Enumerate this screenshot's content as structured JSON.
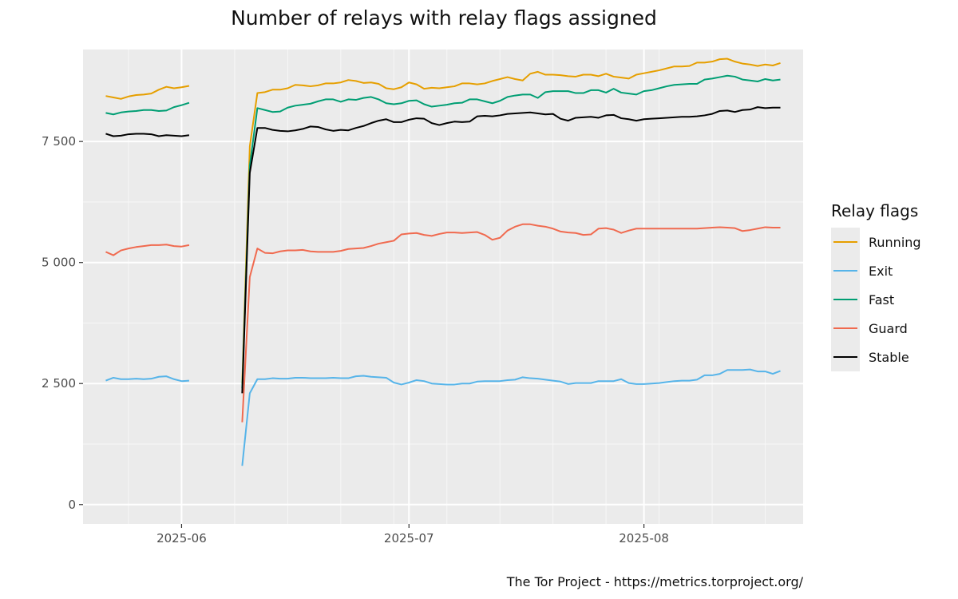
{
  "caption": "The Tor Project - https://metrics.torproject.org/",
  "chart_data": {
    "type": "line",
    "title": "Number of relays with relay flags assigned",
    "xlabel": "",
    "ylabel": "",
    "x_ticks": [
      {
        "date": "2025-06-01",
        "label": "2025-06"
      },
      {
        "date": "2025-07-01",
        "label": "2025-07"
      },
      {
        "date": "2025-08-01",
        "label": "2025-08"
      }
    ],
    "y_ticks": [
      {
        "value": 0,
        "label": "0"
      },
      {
        "value": 2500,
        "label": "2 500"
      },
      {
        "value": 5000,
        "label": "5 000"
      },
      {
        "value": 7500,
        "label": "7 500"
      }
    ],
    "xlim": [
      "2025-05-19",
      "2025-08-22"
    ],
    "ylim": [
      -400,
      9400
    ],
    "grid": true,
    "legend": {
      "title": "Relay flags",
      "position": "right"
    },
    "x_segments": [
      [
        "2025-05-22",
        "2025-05-23",
        "2025-05-24",
        "2025-05-25",
        "2025-05-26",
        "2025-05-27",
        "2025-05-28",
        "2025-05-29",
        "2025-05-30",
        "2025-05-31",
        "2025-06-01",
        "2025-06-02"
      ],
      [
        "2025-06-09",
        "2025-06-10",
        "2025-06-11",
        "2025-06-12",
        "2025-06-13",
        "2025-06-14",
        "2025-06-15",
        "2025-06-16",
        "2025-06-17",
        "2025-06-18",
        "2025-06-19",
        "2025-06-20",
        "2025-06-21",
        "2025-06-22",
        "2025-06-23",
        "2025-06-24",
        "2025-06-25",
        "2025-06-26",
        "2025-06-27",
        "2025-06-28",
        "2025-06-29",
        "2025-06-30",
        "2025-07-01",
        "2025-07-02",
        "2025-07-03",
        "2025-07-04",
        "2025-07-05",
        "2025-07-06",
        "2025-07-07",
        "2025-07-08",
        "2025-07-09",
        "2025-07-10",
        "2025-07-11",
        "2025-07-12",
        "2025-07-13",
        "2025-07-14",
        "2025-07-15",
        "2025-07-16",
        "2025-07-17",
        "2025-07-18",
        "2025-07-19",
        "2025-07-20",
        "2025-07-21",
        "2025-07-22",
        "2025-07-23",
        "2025-07-24",
        "2025-07-25",
        "2025-07-26",
        "2025-07-27",
        "2025-07-28",
        "2025-07-29",
        "2025-07-30",
        "2025-07-31",
        "2025-08-01",
        "2025-08-02",
        "2025-08-03",
        "2025-08-04",
        "2025-08-05",
        "2025-08-06",
        "2025-08-07",
        "2025-08-08",
        "2025-08-09",
        "2025-08-10",
        "2025-08-11",
        "2025-08-12",
        "2025-08-13",
        "2025-08-14",
        "2025-08-15",
        "2025-08-16",
        "2025-08-17",
        "2025-08-18",
        "2025-08-19"
      ]
    ],
    "series": [
      {
        "name": "Running",
        "color": "#E69F00",
        "values": [
          [
            8440,
            8410,
            8380,
            8430,
            8460,
            8470,
            8490,
            8570,
            8630,
            8600,
            8620,
            8650
          ],
          [
            2500,
            7400,
            8500,
            8520,
            8570,
            8570,
            8600,
            8670,
            8660,
            8640,
            8660,
            8700,
            8700,
            8720,
            8770,
            8750,
            8710,
            8720,
            8690,
            8600,
            8580,
            8620,
            8720,
            8680,
            8590,
            8610,
            8600,
            8620,
            8640,
            8700,
            8700,
            8680,
            8700,
            8750,
            8790,
            8830,
            8790,
            8760,
            8900,
            8940,
            8880,
            8880,
            8870,
            8850,
            8840,
            8880,
            8880,
            8850,
            8900,
            8840,
            8820,
            8800,
            8880,
            8910,
            8940,
            8970,
            9010,
            9050,
            9050,
            9060,
            9130,
            9130,
            9150,
            9200,
            9210,
            9150,
            9110,
            9090,
            9060,
            9090,
            9070,
            9120
          ]
        ]
      },
      {
        "name": "Exit",
        "color": "#56B4E9",
        "values": [
          [
            2560,
            2620,
            2590,
            2590,
            2600,
            2590,
            2600,
            2640,
            2650,
            2590,
            2550,
            2560
          ],
          [
            800,
            2300,
            2590,
            2590,
            2610,
            2600,
            2600,
            2620,
            2620,
            2610,
            2610,
            2610,
            2620,
            2610,
            2610,
            2650,
            2660,
            2640,
            2630,
            2620,
            2520,
            2480,
            2520,
            2570,
            2550,
            2500,
            2490,
            2480,
            2480,
            2500,
            2500,
            2540,
            2550,
            2550,
            2550,
            2570,
            2580,
            2630,
            2610,
            2600,
            2580,
            2560,
            2540,
            2490,
            2510,
            2510,
            2510,
            2550,
            2550,
            2550,
            2590,
            2510,
            2490,
            2490,
            2500,
            2510,
            2530,
            2550,
            2560,
            2560,
            2580,
            2670,
            2670,
            2700,
            2780,
            2780,
            2780,
            2790,
            2750,
            2750,
            2700,
            2760
          ]
        ]
      },
      {
        "name": "Fast",
        "color": "#009E73",
        "values": [
          [
            8090,
            8060,
            8100,
            8120,
            8130,
            8150,
            8150,
            8130,
            8140,
            8210,
            8250,
            8300
          ],
          [
            2400,
            7000,
            8190,
            8150,
            8110,
            8120,
            8200,
            8240,
            8260,
            8280,
            8330,
            8370,
            8370,
            8320,
            8370,
            8360,
            8400,
            8420,
            8370,
            8290,
            8270,
            8290,
            8340,
            8350,
            8270,
            8220,
            8240,
            8260,
            8290,
            8300,
            8370,
            8370,
            8330,
            8290,
            8340,
            8420,
            8450,
            8470,
            8470,
            8400,
            8520,
            8540,
            8540,
            8540,
            8500,
            8500,
            8560,
            8560,
            8510,
            8590,
            8510,
            8490,
            8470,
            8540,
            8560,
            8600,
            8640,
            8670,
            8680,
            8690,
            8690,
            8780,
            8800,
            8830,
            8860,
            8840,
            8780,
            8760,
            8740,
            8790,
            8760,
            8780
          ]
        ]
      },
      {
        "name": "Guard",
        "color": "#F06A4F",
        "values": [
          [
            5220,
            5150,
            5250,
            5290,
            5320,
            5340,
            5360,
            5360,
            5370,
            5340,
            5330,
            5360
          ],
          [
            1700,
            4700,
            5290,
            5200,
            5190,
            5230,
            5250,
            5250,
            5260,
            5230,
            5220,
            5220,
            5220,
            5240,
            5280,
            5290,
            5300,
            5340,
            5390,
            5420,
            5450,
            5580,
            5600,
            5610,
            5570,
            5550,
            5590,
            5620,
            5620,
            5610,
            5620,
            5630,
            5570,
            5470,
            5510,
            5660,
            5740,
            5790,
            5790,
            5760,
            5740,
            5700,
            5640,
            5620,
            5610,
            5570,
            5580,
            5700,
            5710,
            5680,
            5610,
            5660,
            5700,
            5700,
            5700,
            5700,
            5700,
            5700,
            5700,
            5700,
            5700,
            5710,
            5720,
            5730,
            5720,
            5710,
            5650,
            5670,
            5700,
            5730,
            5720,
            5720
          ]
        ]
      },
      {
        "name": "Stable",
        "color": "#000000",
        "values": [
          [
            7660,
            7610,
            7620,
            7650,
            7660,
            7660,
            7650,
            7610,
            7630,
            7620,
            7610,
            7630
          ],
          [
            2300,
            6850,
            7780,
            7780,
            7740,
            7720,
            7710,
            7730,
            7760,
            7810,
            7800,
            7750,
            7720,
            7740,
            7730,
            7780,
            7820,
            7880,
            7930,
            7960,
            7900,
            7900,
            7950,
            7980,
            7970,
            7880,
            7840,
            7880,
            7910,
            7900,
            7910,
            8020,
            8030,
            8020,
            8040,
            8070,
            8080,
            8090,
            8100,
            8080,
            8060,
            8070,
            7970,
            7930,
            7990,
            8000,
            8010,
            7990,
            8040,
            8050,
            7980,
            7960,
            7930,
            7960,
            7970,
            7980,
            7990,
            8000,
            8010,
            8010,
            8020,
            8040,
            8070,
            8130,
            8140,
            8110,
            8150,
            8160,
            8210,
            8190,
            8200,
            8200
          ]
        ]
      }
    ]
  }
}
